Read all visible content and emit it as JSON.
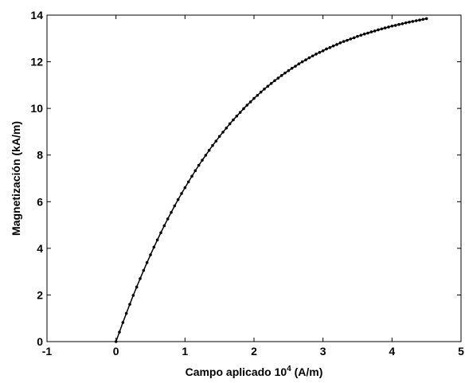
{
  "chart_data": {
    "type": "line",
    "title": "",
    "xlabel": {
      "main": "Campo aplicado 10",
      "superscript": "4",
      "unit": " (A/m)"
    },
    "ylabel": "Magnetización (kA/m)",
    "xlim": [
      -1,
      5
    ],
    "ylim": [
      0,
      14
    ],
    "xticks": [
      "-1",
      "0",
      "1",
      "2",
      "3",
      "4",
      "5"
    ],
    "yticks": [
      "0",
      "2",
      "4",
      "6",
      "8",
      "10",
      "12",
      "14"
    ],
    "grid": false,
    "legend": "none",
    "colors": {
      "line": "#000000",
      "marker": "#000000",
      "axes": "#000000",
      "background": "#ffffff"
    },
    "marker": "dot",
    "series": [
      {
        "x": [
          0,
          0.05,
          0.1,
          0.15,
          0.2,
          0.25,
          0.3,
          0.35,
          0.4,
          0.45,
          0.5,
          0.55,
          0.6,
          0.65,
          0.7,
          0.75,
          0.8,
          0.85,
          0.9,
          0.95,
          1.0,
          1.05,
          1.1,
          1.15,
          1.2,
          1.25,
          1.3,
          1.35,
          1.4,
          1.45,
          1.5,
          1.55,
          1.6,
          1.65,
          1.7,
          1.75,
          1.8,
          1.85,
          1.9,
          1.95,
          2.0,
          2.05,
          2.1,
          2.15,
          2.2,
          2.25,
          2.3,
          2.35,
          2.4,
          2.45,
          2.5,
          2.55,
          2.6,
          2.65,
          2.7,
          2.75,
          2.8,
          2.85,
          2.9,
          2.95,
          3.0,
          3.05,
          3.1,
          3.15,
          3.2,
          3.25,
          3.3,
          3.35,
          3.4,
          3.45,
          3.5,
          3.55,
          3.6,
          3.65,
          3.7,
          3.75,
          3.8,
          3.85,
          3.9,
          3.95,
          4.0,
          4.05,
          4.1,
          4.15,
          4.2,
          4.25,
          4.3,
          4.35,
          4.4,
          4.45,
          4.5
        ],
        "y": [
          0.0,
          0.41,
          0.82,
          1.21,
          1.6,
          1.98,
          2.34,
          2.7,
          3.05,
          3.39,
          3.72,
          4.05,
          4.36,
          4.67,
          4.97,
          5.26,
          5.54,
          5.82,
          6.09,
          6.35,
          6.6,
          6.85,
          7.09,
          7.33,
          7.56,
          7.78,
          7.99,
          8.2,
          8.41,
          8.6,
          8.8,
          8.98,
          9.16,
          9.34,
          9.51,
          9.67,
          9.83,
          9.99,
          10.14,
          10.28,
          10.43,
          10.56,
          10.7,
          10.83,
          10.95,
          11.07,
          11.19,
          11.3,
          11.41,
          11.52,
          11.62,
          11.72,
          11.81,
          11.91,
          12.0,
          12.08,
          12.17,
          12.25,
          12.33,
          12.4,
          12.47,
          12.55,
          12.61,
          12.68,
          12.74,
          12.81,
          12.87,
          12.92,
          12.98,
          13.03,
          13.09,
          13.14,
          13.19,
          13.23,
          13.28,
          13.32,
          13.37,
          13.41,
          13.45,
          13.49,
          13.53,
          13.56,
          13.6,
          13.63,
          13.67,
          13.7,
          13.73,
          13.76,
          13.79,
          13.82,
          13.85
        ]
      }
    ]
  }
}
